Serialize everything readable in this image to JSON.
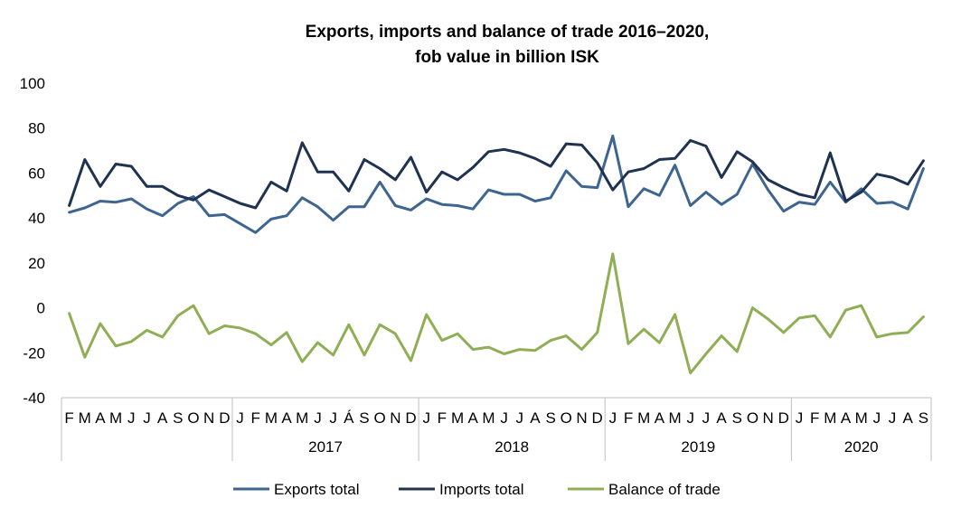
{
  "chart_data": {
    "type": "line",
    "title_lines": [
      "Exports, imports and balance of trade 2016–2020,",
      "fob value in billion ISK"
    ],
    "ylim": [
      -40,
      100
    ],
    "yticks": [
      100,
      80,
      60,
      40,
      20,
      0,
      -20,
      -40
    ],
    "grid": false,
    "legend_position": "bottom",
    "x": [
      "F",
      "M",
      "A",
      "M",
      "J",
      "J",
      "A",
      "S",
      "O",
      "N",
      "D",
      "J",
      "F",
      "M",
      "A",
      "M",
      "J",
      "J",
      "Á",
      "S",
      "O",
      "N",
      "D",
      "J",
      "F",
      "M",
      "A",
      "M",
      "J",
      "J",
      "A",
      "S",
      "O",
      "N",
      "D",
      "J",
      "F",
      "M",
      "A",
      "M",
      "J",
      "J",
      "A",
      "S",
      "O",
      "N",
      "D",
      "J",
      "F",
      "M",
      "A",
      "M",
      "J",
      "J",
      "A",
      "S"
    ],
    "years": [
      {
        "label": "",
        "start": 0,
        "end": 10
      },
      {
        "label": "2017",
        "start": 11,
        "end": 22
      },
      {
        "label": "2018",
        "start": 23,
        "end": 34
      },
      {
        "label": "2019",
        "start": 35,
        "end": 46
      },
      {
        "label": "2020",
        "start": 47,
        "end": 55
      }
    ],
    "series": [
      {
        "name": "Exports total",
        "color": "#3e6590",
        "values": [
          42.5,
          44.5,
          47.5,
          47,
          48.5,
          44,
          41,
          46.5,
          49.5,
          41,
          41.5,
          37.5,
          33.5,
          39.5,
          41,
          49,
          45,
          39,
          45,
          45,
          56,
          45.5,
          43.5,
          48.5,
          46,
          45.5,
          44,
          52.5,
          50.5,
          50.5,
          47.5,
          49,
          61,
          54,
          53.5,
          76.5,
          45,
          53,
          50,
          63.5,
          45.5,
          51.5,
          46,
          50.5,
          64,
          52.5,
          43,
          47,
          46,
          56,
          47,
          53,
          46.5,
          47,
          44,
          62
        ]
      },
      {
        "name": "Imports total",
        "color": "#1f3350",
        "values": [
          45.5,
          66,
          54,
          64,
          63,
          54,
          54,
          50,
          48,
          52.5,
          49.5,
          46.5,
          44.5,
          56,
          52,
          73.5,
          60.5,
          60.5,
          52,
          66,
          62,
          57,
          67,
          51.5,
          60.5,
          57,
          62.5,
          69.5,
          70.5,
          69,
          66.5,
          63,
          73,
          72.5,
          64.5,
          52.5,
          60.5,
          62,
          66,
          66.5,
          74.5,
          72,
          58,
          69.5,
          65,
          57,
          53.5,
          50.5,
          49,
          69,
          47.5,
          51.5,
          59.5,
          58,
          55,
          65.5
        ]
      },
      {
        "name": "Balance of trade",
        "color": "#8fae55",
        "values": [
          -2.5,
          -22,
          -7,
          -17,
          -15,
          -10,
          -13,
          -3.5,
          1,
          -11.5,
          -8,
          -9,
          -11.5,
          -16.5,
          -11,
          -24,
          -15.5,
          -21,
          -7.5,
          -21,
          -7.5,
          -11.5,
          -23.5,
          -3,
          -14.5,
          -11.5,
          -18.5,
          -17.5,
          -20.5,
          -18.5,
          -19,
          -14.5,
          -12.5,
          -18.5,
          -11,
          24,
          -16,
          -9.5,
          -15.5,
          -3,
          -29,
          -20.5,
          -12.5,
          -19.5,
          0,
          -5,
          -11,
          -4.5,
          -3.5,
          -13,
          -1,
          1,
          -13,
          -11.5,
          -11,
          -4
        ]
      }
    ]
  }
}
